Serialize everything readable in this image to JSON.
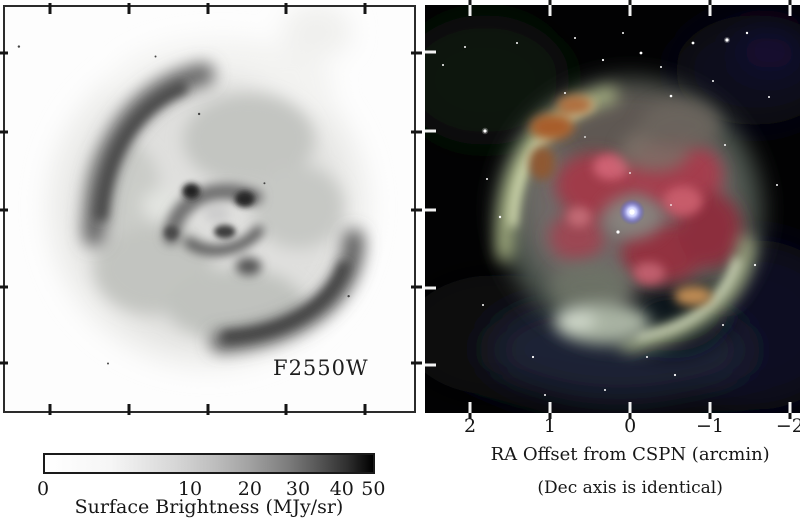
{
  "figure": {
    "description": "Two-panel figure of a planetary nebula: grayscale mid-infrared image with colorbar, and color composite image",
    "left_panel": {
      "filter_label": "F2550W",
      "image_type": "grayscale inverted surface-brightness map"
    },
    "right_panel": {
      "image_type": "color composite of the same nebula",
      "x_ticks": [
        "2",
        "1",
        "0",
        "−1",
        "−2"
      ],
      "x_tick_values": [
        2,
        1,
        0,
        -1,
        -2
      ],
      "xlabel": "RA Offset from CSPN (arcmin)",
      "xlabel_note": "(Dec axis is identical)"
    },
    "colorbar": {
      "ticks": [
        "0",
        "10",
        "20",
        "30",
        "40",
        "50"
      ],
      "tick_values": [
        0,
        10,
        20,
        30,
        40,
        50
      ],
      "label": "Surface Brightness (MJy/sr)",
      "scale": "sqrt",
      "range": [
        0,
        50
      ]
    },
    "colors": {
      "background": "#ffffff",
      "frame": "#2b2b2b",
      "right_panel_background": "#020203",
      "rim_green": "#dce4b8",
      "nebula_red": "#a53c4e",
      "nebula_pink": "#cf6273",
      "orange_patch": "#a85d2c",
      "central_star_glow": "#8c8cf0",
      "star_white": "#ffffff"
    }
  }
}
